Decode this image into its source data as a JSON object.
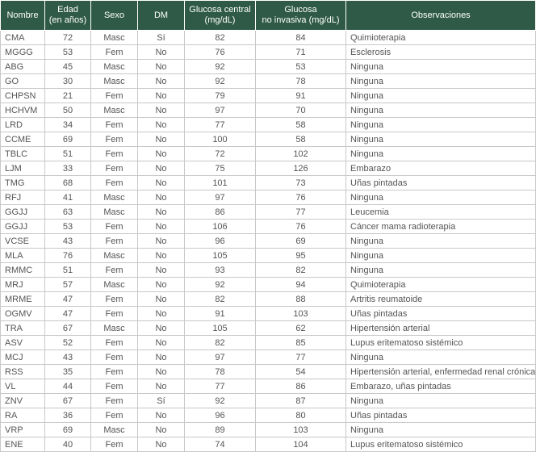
{
  "table": {
    "headers": [
      [
        "Nombre"
      ],
      [
        "Edad",
        "(en años)"
      ],
      [
        "Sexo"
      ],
      [
        "DM"
      ],
      [
        "Glucosa central",
        "(mg/dL)"
      ],
      [
        "Glucosa",
        "no invasiva (mg/dL)"
      ],
      [
        "Observaciones"
      ]
    ],
    "rows": [
      [
        "CMA",
        72,
        "Masc",
        "Sí",
        82,
        84,
        "Quimioterapia"
      ],
      [
        "MGGG",
        53,
        "Fem",
        "No",
        76,
        71,
        "Esclerosis"
      ],
      [
        "ABG",
        45,
        "Masc",
        "No",
        92,
        53,
        "Ninguna"
      ],
      [
        "GO",
        30,
        "Masc",
        "No",
        92,
        78,
        "Ninguna"
      ],
      [
        "CHPSN",
        21,
        "Fem",
        "No",
        79,
        91,
        "Ninguna"
      ],
      [
        "HCHVM",
        50,
        "Masc",
        "No",
        97,
        70,
        "Ninguna"
      ],
      [
        "LRD",
        34,
        "Fem",
        "No",
        77,
        58,
        "Ninguna"
      ],
      [
        "CCME",
        69,
        "Fem",
        "No",
        100,
        58,
        "Ninguna"
      ],
      [
        "TBLC",
        51,
        "Fem",
        "No",
        72,
        102,
        "Ninguna"
      ],
      [
        "LJM",
        33,
        "Fem",
        "No",
        75,
        126,
        "Embarazo"
      ],
      [
        "TMG",
        68,
        "Fem",
        "No",
        101,
        73,
        "Uñas pintadas"
      ],
      [
        "RFJ",
        41,
        "Masc",
        "No",
        97,
        76,
        "Ninguna"
      ],
      [
        "GGJJ",
        63,
        "Masc",
        "No",
        86,
        77,
        "Leucemia"
      ],
      [
        "GGJJ",
        53,
        "Fem",
        "No",
        106,
        76,
        "Cáncer mama radioterapia"
      ],
      [
        "VCSE",
        43,
        "Fem",
        "No",
        96,
        69,
        "Ninguna"
      ],
      [
        "MLA",
        76,
        "Masc",
        "No",
        105,
        95,
        "Ninguna"
      ],
      [
        "RMMC",
        51,
        "Fem",
        "No",
        93,
        82,
        "Ninguna"
      ],
      [
        "MRJ",
        57,
        "Masc",
        "No",
        92,
        94,
        "Quimioterapia"
      ],
      [
        "MRME",
        47,
        "Fem",
        "No",
        82,
        88,
        "Artritis reumatoide"
      ],
      [
        "OGMV",
        47,
        "Fem",
        "No",
        91,
        103,
        "Uñas pintadas"
      ],
      [
        "TRA",
        67,
        "Masc",
        "No",
        105,
        62,
        "Hipertensión arterial"
      ],
      [
        "ASV",
        52,
        "Fem",
        "No",
        82,
        85,
        "Lupus eritematoso sistémico"
      ],
      [
        "MCJ",
        43,
        "Fem",
        "No",
        97,
        77,
        "Ninguna"
      ],
      [
        "RSS",
        35,
        "Fem",
        "No",
        78,
        54,
        "Hipertensión arterial, enfermedad renal crónica"
      ],
      [
        "VL",
        44,
        "Fem",
        "No",
        77,
        86,
        "Embarazo, uñas pintadas"
      ],
      [
        "ZNV",
        67,
        "Fem",
        "Sí",
        92,
        87,
        "Ninguna"
      ],
      [
        "RA",
        36,
        "Fem",
        "No",
        96,
        80,
        "Uñas pintadas"
      ],
      [
        "VRP",
        69,
        "Masc",
        "No",
        89,
        103,
        "Ninguna"
      ],
      [
        "ENE",
        40,
        "Fem",
        "No",
        74,
        104,
        "Lupus eritematoso sistémico"
      ]
    ]
  }
}
